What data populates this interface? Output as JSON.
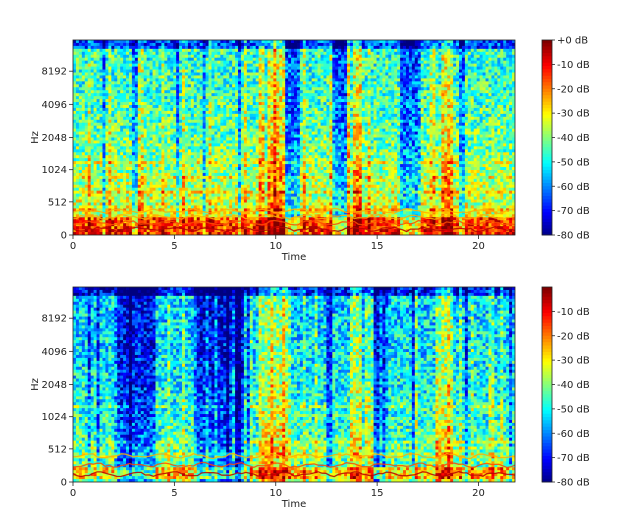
{
  "chart_data": [
    {
      "type": "heatmap",
      "title": "",
      "xlabel": "Time",
      "ylabel": "Hz",
      "xlim": [
        0,
        21.8
      ],
      "x_ticks": [
        0,
        5,
        10,
        15,
        20
      ],
      "y_scale": "log2",
      "y_ticks": [
        "0",
        "512",
        "1024",
        "2048",
        "4096",
        "8192"
      ],
      "colormap": "jet",
      "colorbar": {
        "range_db": [
          -80,
          0
        ],
        "ticks": [
          "+0 dB",
          "-10 dB",
          "-20 dB",
          "-30 dB",
          "-40 dB",
          "-50 dB",
          "-60 dB",
          "-70 dB",
          "-80 dB"
        ]
      },
      "loud_regions_time": [
        [
          9.2,
          10.4
        ],
        [
          13.5,
          14.3
        ],
        [
          18.2,
          18.8
        ]
      ],
      "quiet_regions_time": [
        [
          10.4,
          11.2
        ],
        [
          13.0,
          13.5
        ],
        [
          16.2,
          17.0
        ]
      ],
      "low_frequency_energy": "high (yellow-red bands near 0 Hz throughout)"
    },
    {
      "type": "heatmap",
      "title": "",
      "xlabel": "Time",
      "ylabel": "Hz",
      "xlim": [
        0,
        21.8
      ],
      "x_ticks": [
        0,
        5,
        10,
        15,
        20
      ],
      "y_scale": "log2",
      "y_ticks": [
        "0",
        "512",
        "1024",
        "2048",
        "4096",
        "8192"
      ],
      "colormap": "jet",
      "colorbar": {
        "range_db": [
          -80,
          0
        ],
        "ticks": [
          "-10 dB",
          "-20 dB",
          "-30 dB",
          "-40 dB",
          "-50 dB",
          "-60 dB",
          "-70 dB",
          "-80 dB"
        ]
      },
      "loud_regions_time": [
        [
          9.2,
          10.6
        ],
        [
          13.6,
          14.4
        ],
        [
          17.8,
          18.8
        ]
      ],
      "quiet_regions_time": [
        [
          2.0,
          4.0
        ],
        [
          6.0,
          8.5
        ],
        [
          14.8,
          15.5
        ]
      ],
      "low_frequency_energy": "strong red harmonic line near 100-200 Hz"
    }
  ]
}
